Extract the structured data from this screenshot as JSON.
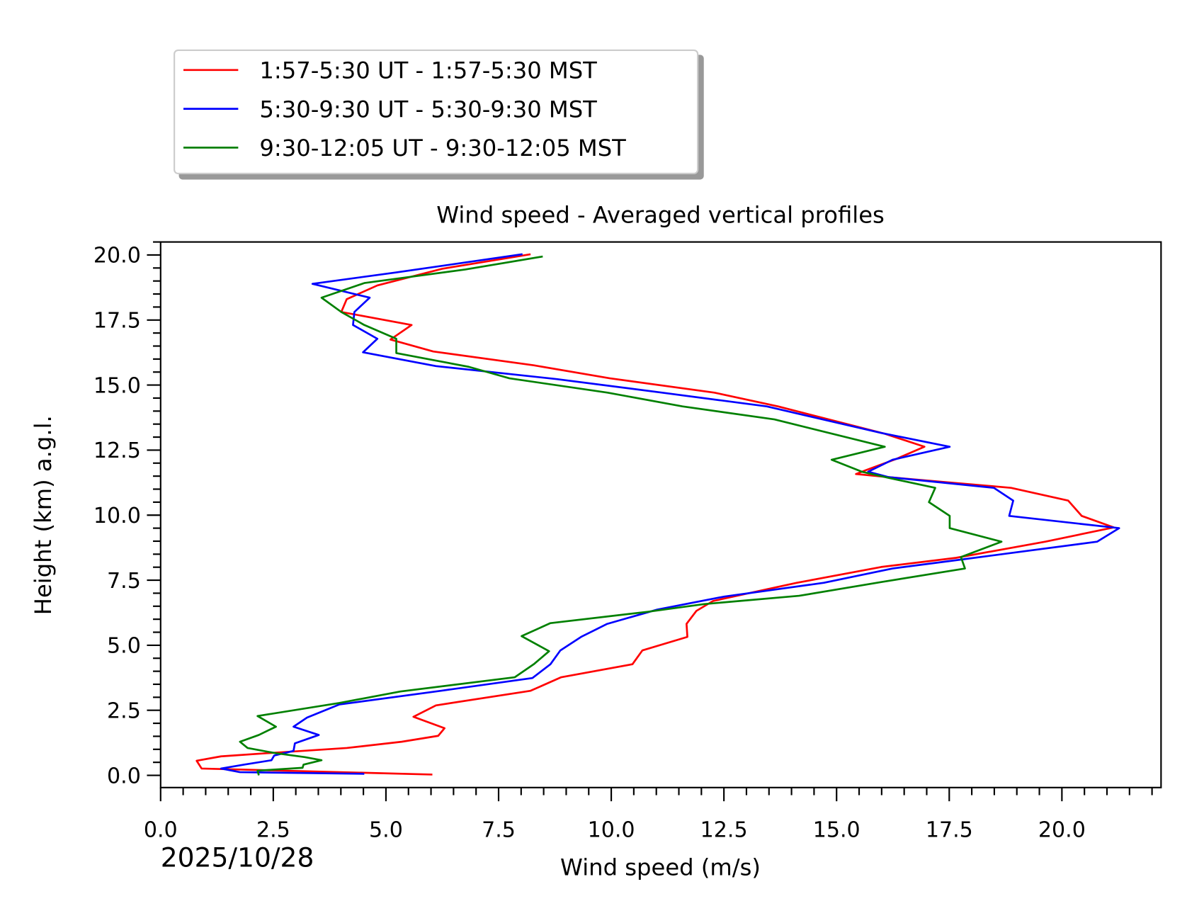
{
  "chart_data": {
    "type": "line",
    "title": "Wind speed - Averaged vertical profiles",
    "xlabel": "Wind speed (m/s)",
    "ylabel": "Height (km) a.g.l.",
    "date_label": "2025/10/28",
    "xlim": [
      0,
      22.2
    ],
    "ylim": [
      -0.47,
      20.5
    ],
    "xticks": [
      "0.0",
      "2.5",
      "5.0",
      "7.5",
      "10.0",
      "12.5",
      "15.0",
      "17.5",
      "20.0"
    ],
    "yticks": [
      "0.0",
      "2.5",
      "5.0",
      "7.5",
      "10.0",
      "12.5",
      "15.0",
      "17.5",
      "20.0"
    ],
    "grid": false,
    "legend_position": "top-left, above plot",
    "series": [
      {
        "name": "1:57-5:30 UT - 1:57-5:30 MST",
        "color": "#ff0000",
        "x": [
          6.03,
          0.91,
          0.8,
          1.34,
          2.35,
          4.13,
          5.35,
          6.16,
          6.3,
          5.61,
          6.11,
          8.21,
          8.89,
          10.47,
          10.69,
          11.69,
          11.67,
          11.89,
          12.26,
          14.12,
          15.99,
          17.65,
          19.63,
          21.15,
          20.44,
          20.14,
          18.87,
          16.16,
          15.43,
          15.65,
          16.32,
          16.95,
          16.07,
          13.7,
          12.29,
          9.97,
          8.28,
          6.05,
          5.1,
          5.57,
          4.01,
          4.13,
          4.81,
          6.25,
          8.21
        ],
        "y": [
          0.03,
          0.26,
          0.56,
          0.73,
          0.85,
          1.05,
          1.29,
          1.52,
          1.81,
          2.25,
          2.69,
          3.25,
          3.77,
          4.27,
          4.8,
          5.32,
          5.82,
          6.32,
          6.7,
          7.4,
          8.01,
          8.36,
          8.98,
          9.53,
          9.97,
          10.56,
          11.05,
          11.46,
          11.58,
          11.73,
          12.16,
          12.63,
          13.13,
          14.18,
          14.71,
          15.26,
          15.76,
          16.29,
          16.75,
          17.31,
          17.81,
          18.3,
          18.83,
          19.47,
          20.03
        ]
      },
      {
        "name": "5:30-9:30 UT - 5:30-9:30 MST",
        "color": "#0000ff",
        "x": [
          4.52,
          1.76,
          1.34,
          1.85,
          2.46,
          2.52,
          2.95,
          2.98,
          3.51,
          2.95,
          3.25,
          3.96,
          6.22,
          8.25,
          8.65,
          8.87,
          9.33,
          9.91,
          11.02,
          12.51,
          14.72,
          16.24,
          17.8,
          20.78,
          21.27,
          18.83,
          18.92,
          18.49,
          16.16,
          15.7,
          16.24,
          17.51,
          15.99,
          13.45,
          11.13,
          8.79,
          6.11,
          4.49,
          4.81,
          4.27,
          4.3,
          4.64,
          3.37,
          5.23,
          8.03
        ],
        "y": [
          0.06,
          0.12,
          0.26,
          0.41,
          0.58,
          0.76,
          0.94,
          1.23,
          1.55,
          1.87,
          2.22,
          2.72,
          3.25,
          3.74,
          4.27,
          4.8,
          5.32,
          5.82,
          6.37,
          6.87,
          7.4,
          7.95,
          8.3,
          8.98,
          9.5,
          9.97,
          10.56,
          11.05,
          11.46,
          11.67,
          12.13,
          12.63,
          13.16,
          14.18,
          14.71,
          15.23,
          15.73,
          16.26,
          16.78,
          17.31,
          17.81,
          18.36,
          18.89,
          19.33,
          20.03
        ]
      },
      {
        "name": "9:30-12:05 UT - 9:30-12:05 MST",
        "color": "#008000",
        "x": [
          2.18,
          2.15,
          3.15,
          3.17,
          3.57,
          3.2,
          2.56,
          1.93,
          1.76,
          2.18,
          2.56,
          2.15,
          3.96,
          5.32,
          7.86,
          8.28,
          8.62,
          8.01,
          8.65,
          10.82,
          12.06,
          14.17,
          15.99,
          17.85,
          17.76,
          18.66,
          17.51,
          17.51,
          17.05,
          17.19,
          16.16,
          15.56,
          14.89,
          16.07,
          13.62,
          11.58,
          9.92,
          7.74,
          6.84,
          5.23,
          5.23,
          4.52,
          4.01,
          3.57,
          4.52,
          6.76,
          8.48
        ],
        "y": [
          0.0,
          0.18,
          0.29,
          0.41,
          0.58,
          0.7,
          0.85,
          1.05,
          1.29,
          1.55,
          1.87,
          2.28,
          2.78,
          3.22,
          3.77,
          4.27,
          4.77,
          5.35,
          5.85,
          6.29,
          6.58,
          6.9,
          7.43,
          7.95,
          8.39,
          8.98,
          9.5,
          9.97,
          10.5,
          11.05,
          11.43,
          11.67,
          12.13,
          12.63,
          13.68,
          14.18,
          14.71,
          15.26,
          15.7,
          16.23,
          16.78,
          17.31,
          17.81,
          18.36,
          18.92,
          19.44,
          19.94
        ]
      }
    ]
  }
}
